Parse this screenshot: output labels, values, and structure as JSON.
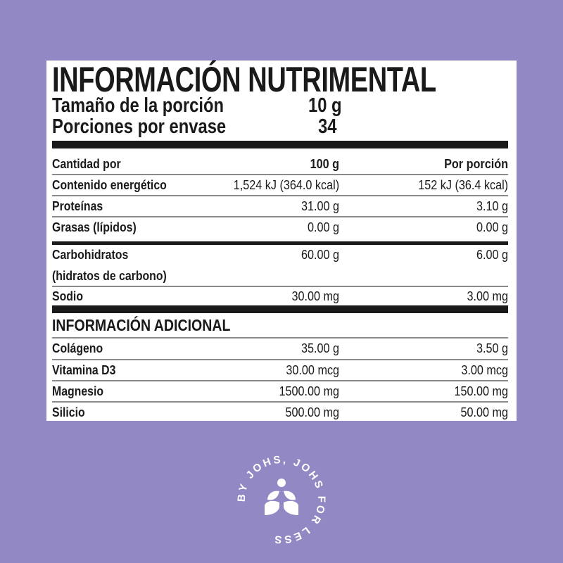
{
  "title": "INFORMACIÓN NUTRIMENTAL",
  "serving": {
    "size_label": "Tamaño de la porción",
    "size_value": "10 g",
    "count_label": "Porciones por envase",
    "count_value": "34"
  },
  "header": {
    "label": "Cantidad por",
    "col1": "100 g",
    "col2": "Por porción"
  },
  "rows": [
    {
      "label": "Contenido energético",
      "col1": "1,524 kJ (364.0 kcal)",
      "col2": "152 kJ (36.4 kcal)"
    },
    {
      "label": "Proteínas",
      "col1": "31.00 g",
      "col2": "3.10 g"
    },
    {
      "label": "Grasas (lípidos)",
      "col1": "0.00 g",
      "col2": "0.00 g"
    },
    {
      "label": "Carbohidratos",
      "col1": "60.00 g",
      "col2": "6.00 g"
    },
    {
      "label": "(hidratos de carbono)"
    },
    {
      "label": "Sodio",
      "col1": "30.00 mg",
      "col2": "3.00 mg"
    }
  ],
  "additional": {
    "title": "INFORMACIÓN ADICIONAL",
    "rows": [
      {
        "label": "Colágeno",
        "col1": "35.00 g",
        "col2": "3.50 g"
      },
      {
        "label": "Vitamina D3",
        "col1": "30.00 mcg",
        "col2": "3.00 mcg"
      },
      {
        "label": "Magnesio",
        "col1": "1500.00 mg",
        "col2": "150.00 mg"
      },
      {
        "label": "Silicio",
        "col1": "500.00 mg",
        "col2": "50.00 mg"
      }
    ]
  },
  "logo": {
    "text": "BY JOHS, JOHS FOR LESS",
    "icon": "sprout-icon"
  },
  "colors": {
    "background": "#9289c4",
    "panel": "#ffffff",
    "text": "#1a1a1a"
  }
}
